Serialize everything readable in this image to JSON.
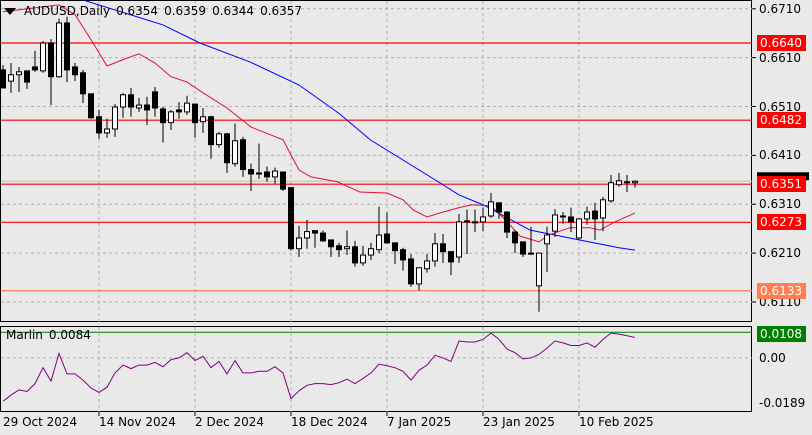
{
  "header": {
    "symbol": "AUDUSD,Daily",
    "open": "0.6354",
    "high": "0.6359",
    "low": "0.6344",
    "close": "0.6357"
  },
  "indicator": {
    "name": "Marlin",
    "value": "0.0084",
    "axis_labels": [
      "0.00",
      "-0.0189"
    ],
    "level_tag": "0.0108",
    "ylim": [
      -0.0227,
      0.0134
    ]
  },
  "price_axis": {
    "labels": [
      "0.6710",
      "0.6610",
      "0.6510",
      "0.6410",
      "0.6310",
      "0.6210",
      "0.6110"
    ],
    "ylim": [
      0.6069,
      0.6728
    ]
  },
  "levels": [
    {
      "label": "0.6640",
      "value": 0.664,
      "color": "#ff0000"
    },
    {
      "label": "0.6482",
      "value": 0.6482,
      "color": "#ff0000"
    },
    {
      "label": "0.6351",
      "value": 0.6351,
      "color": "#ff0000"
    },
    {
      "label": "0.6273",
      "value": 0.6273,
      "color": "#ff0000"
    },
    {
      "label": "0.6133",
      "value": 0.6133,
      "color": "#ff7f50"
    }
  ],
  "current_price": 0.6357,
  "date_axis": [
    {
      "label": "29 Oct 2024",
      "bar": 0
    },
    {
      "label": "14 Nov 2024",
      "bar": 12
    },
    {
      "label": "2 Dec 2024",
      "bar": 24
    },
    {
      "label": "18 Dec 2024",
      "bar": 36
    },
    {
      "label": "7 Jan 2025",
      "bar": 48
    },
    {
      "label": "23 Jan 2025",
      "bar": 60
    },
    {
      "label": "10 Feb 2025",
      "bar": 72
    }
  ],
  "colors": {
    "ma_fast": "#e0103a",
    "ma_slow": "#0000ff",
    "indicator_line": "#800080",
    "indicator_level": "#008000"
  },
  "chart_data": {
    "type": "candlestick",
    "ohlc_order": [
      "open",
      "high",
      "low",
      "close"
    ],
    "ohlc": [
      [
        0.6585,
        0.6595,
        0.6548,
        0.6548
      ],
      [
        0.6562,
        0.6599,
        0.6538,
        0.6575
      ],
      [
        0.6575,
        0.6591,
        0.654,
        0.6581
      ],
      [
        0.6583,
        0.6583,
        0.6546,
        0.656
      ],
      [
        0.6591,
        0.6624,
        0.6581,
        0.6585
      ],
      [
        0.6583,
        0.6644,
        0.6579,
        0.664
      ],
      [
        0.664,
        0.6648,
        0.6513,
        0.6571
      ],
      [
        0.6571,
        0.669,
        0.6569,
        0.6681
      ],
      [
        0.6681,
        0.6694,
        0.656,
        0.6585
      ],
      [
        0.6591,
        0.6599,
        0.6562,
        0.6575
      ],
      [
        0.6579,
        0.6585,
        0.6517,
        0.6536
      ],
      [
        0.6536,
        0.6536,
        0.6485,
        0.6487
      ],
      [
        0.6489,
        0.6503,
        0.6444,
        0.6456
      ],
      [
        0.6456,
        0.6485,
        0.6446,
        0.6464
      ],
      [
        0.6464,
        0.6515,
        0.6448,
        0.6509
      ],
      [
        0.6509,
        0.6538,
        0.6487,
        0.6534
      ],
      [
        0.6534,
        0.6548,
        0.6489,
        0.6509
      ],
      [
        0.6507,
        0.6528,
        0.6499,
        0.6513
      ],
      [
        0.6513,
        0.653,
        0.6472,
        0.6503
      ],
      [
        0.654,
        0.655,
        0.6489,
        0.6507
      ],
      [
        0.6505,
        0.6509,
        0.6436,
        0.6477
      ],
      [
        0.6477,
        0.6503,
        0.6462,
        0.6499
      ],
      [
        0.6503,
        0.6519,
        0.6485,
        0.6499
      ],
      [
        0.6499,
        0.6532,
        0.6493,
        0.6517
      ],
      [
        0.6515,
        0.6515,
        0.6446,
        0.6477
      ],
      [
        0.6479,
        0.6507,
        0.6456,
        0.6489
      ],
      [
        0.6489,
        0.6491,
        0.6403,
        0.6432
      ],
      [
        0.6432,
        0.6458,
        0.6426,
        0.6454
      ],
      [
        0.6454,
        0.6456,
        0.6374,
        0.6395
      ],
      [
        0.6393,
        0.6475,
        0.6387,
        0.644
      ],
      [
        0.6442,
        0.6448,
        0.6366,
        0.6381
      ],
      [
        0.6381,
        0.6393,
        0.6337,
        0.6372
      ],
      [
        0.6374,
        0.6434,
        0.6362,
        0.6372
      ],
      [
        0.6376,
        0.6387,
        0.6356,
        0.6366
      ],
      [
        0.6366,
        0.6385,
        0.6352,
        0.6378
      ],
      [
        0.6376,
        0.6376,
        0.6337,
        0.6341
      ],
      [
        0.6344,
        0.6344,
        0.6215,
        0.6219
      ],
      [
        0.6219,
        0.6266,
        0.6202,
        0.6241
      ],
      [
        0.6241,
        0.6278,
        0.6219,
        0.6254
      ],
      [
        0.6256,
        0.6256,
        0.6221,
        0.6251
      ],
      [
        0.6251,
        0.6256,
        0.6233,
        0.6235
      ],
      [
        0.6237,
        0.6237,
        0.6202,
        0.6223
      ],
      [
        0.6225,
        0.6231,
        0.6202,
        0.6217
      ],
      [
        0.6219,
        0.6256,
        0.6206,
        0.6223
      ],
      [
        0.6223,
        0.6235,
        0.6182,
        0.619
      ],
      [
        0.619,
        0.6225,
        0.6184,
        0.6206
      ],
      [
        0.6206,
        0.6231,
        0.6196,
        0.6219
      ],
      [
        0.6217,
        0.6305,
        0.621,
        0.6247
      ],
      [
        0.6249,
        0.6293,
        0.6229,
        0.6231
      ],
      [
        0.6231,
        0.6231,
        0.6188,
        0.6215
      ],
      [
        0.6217,
        0.6221,
        0.6174,
        0.6196
      ],
      [
        0.6198,
        0.6208,
        0.6141,
        0.6147
      ],
      [
        0.6147,
        0.618,
        0.6133,
        0.618
      ],
      [
        0.6178,
        0.6208,
        0.617,
        0.6194
      ],
      [
        0.6194,
        0.6251,
        0.6182,
        0.6229
      ],
      [
        0.6229,
        0.6249,
        0.619,
        0.6213
      ],
      [
        0.6213,
        0.6213,
        0.6165,
        0.6192
      ],
      [
        0.6202,
        0.629,
        0.619,
        0.6274
      ],
      [
        0.6274,
        0.6299,
        0.6208,
        0.6276
      ],
      [
        0.6274,
        0.6299,
        0.6253,
        0.6274
      ],
      [
        0.6274,
        0.6303,
        0.6255,
        0.6284
      ],
      [
        0.6286,
        0.6333,
        0.6282,
        0.6315
      ],
      [
        0.6313,
        0.6313,
        0.628,
        0.6294
      ],
      [
        0.6294,
        0.6296,
        0.6241,
        0.6253
      ],
      [
        0.6253,
        0.6257,
        0.621,
        0.6231
      ],
      [
        0.6233,
        0.6233,
        0.6202,
        0.6208
      ],
      [
        0.621,
        0.6264,
        0.6206,
        0.621
      ],
      [
        0.6143,
        0.621,
        0.609,
        0.621
      ],
      [
        0.6229,
        0.6264,
        0.6171,
        0.6247
      ],
      [
        0.6255,
        0.63,
        0.6243,
        0.6288
      ],
      [
        0.6284,
        0.6294,
        0.627,
        0.6286
      ],
      [
        0.6284,
        0.6303,
        0.6253,
        0.6274
      ],
      [
        0.6241,
        0.628,
        0.6237,
        0.628
      ],
      [
        0.628,
        0.6305,
        0.6268,
        0.6294
      ],
      [
        0.6296,
        0.6313,
        0.6237,
        0.628
      ],
      [
        0.6282,
        0.6325,
        0.6255,
        0.6319
      ],
      [
        0.6317,
        0.637,
        0.6313,
        0.6354
      ],
      [
        0.635,
        0.6374,
        0.6346,
        0.6358
      ],
      [
        0.6356,
        0.637,
        0.6335,
        0.6356
      ],
      [
        0.6354,
        0.6359,
        0.6344,
        0.6357
      ]
    ],
    "ma_fast": [
      [
        0,
        0.6704
      ],
      [
        7,
        0.6718
      ],
      [
        9,
        0.6698
      ],
      [
        11,
        0.6647
      ],
      [
        13,
        0.6593
      ],
      [
        15,
        0.6606
      ],
      [
        17,
        0.6618
      ],
      [
        19,
        0.6599
      ],
      [
        21,
        0.6571
      ],
      [
        23,
        0.656
      ],
      [
        25,
        0.6538
      ],
      [
        28,
        0.6507
      ],
      [
        31,
        0.6468
      ],
      [
        35,
        0.6442
      ],
      [
        37,
        0.638
      ],
      [
        38.5,
        0.6366
      ],
      [
        41.8,
        0.6356
      ],
      [
        44.6,
        0.6335
      ],
      [
        48,
        0.6333
      ],
      [
        50,
        0.6319
      ],
      [
        51.3,
        0.6298
      ],
      [
        53,
        0.6284
      ],
      [
        54.6,
        0.6292
      ],
      [
        57,
        0.6303
      ],
      [
        58.6,
        0.6309
      ],
      [
        61,
        0.6307
      ],
      [
        62.8,
        0.6278
      ],
      [
        64.6,
        0.6245
      ],
      [
        67,
        0.6233
      ],
      [
        68.2,
        0.6247
      ],
      [
        70.9,
        0.6262
      ],
      [
        73.4,
        0.6262
      ],
      [
        74.6,
        0.6257
      ],
      [
        76.5,
        0.6274
      ],
      [
        79,
        0.6292
      ]
    ],
    "ma_slow": [
      [
        10,
        0.6728
      ],
      [
        20,
        0.6677
      ],
      [
        24.6,
        0.664
      ],
      [
        30.9,
        0.6601
      ],
      [
        37,
        0.6554
      ],
      [
        42,
        0.6496
      ],
      [
        45.9,
        0.6442
      ],
      [
        54.6,
        0.6354
      ],
      [
        57,
        0.6329
      ],
      [
        60,
        0.6309
      ],
      [
        65.9,
        0.6257
      ],
      [
        72,
        0.6237
      ],
      [
        77,
        0.6221
      ],
      [
        79,
        0.6216
      ]
    ],
    "marlin": [
      -0.0182,
      -0.0156,
      -0.0134,
      -0.0141,
      -0.0108,
      -0.0041,
      -0.0097,
      0.0019,
      -0.0067,
      -0.0067,
      -0.0093,
      -0.0126,
      -0.0145,
      -0.0123,
      -0.0063,
      -0.003,
      -0.0045,
      -0.003,
      -0.003,
      -0.0019,
      -0.0037,
      -0.0007,
      0.0,
      0.0022,
      -0.0011,
      0.0007,
      -0.0041,
      -0.0015,
      -0.0067,
      -0.0011,
      -0.0063,
      -0.0063,
      -0.0056,
      -0.0056,
      -0.0037,
      -0.0063,
      -0.0171,
      -0.0138,
      -0.0115,
      -0.0108,
      -0.0108,
      -0.0112,
      -0.0104,
      -0.0089,
      -0.0108,
      -0.0086,
      -0.0063,
      -0.0026,
      -0.0033,
      -0.0041,
      -0.0056,
      -0.0093,
      -0.0052,
      -0.003,
      0.0011,
      0.0,
      -0.0015,
      0.0071,
      0.0067,
      0.0067,
      0.0078,
      0.0104,
      0.0078,
      0.0037,
      0.0022,
      -0.0004,
      0.0,
      0.0015,
      0.0041,
      0.0071,
      0.0063,
      0.0052,
      0.0052,
      0.0063,
      0.0045,
      0.0078,
      0.0104,
      0.01,
      0.0093,
      0.0086
    ]
  }
}
